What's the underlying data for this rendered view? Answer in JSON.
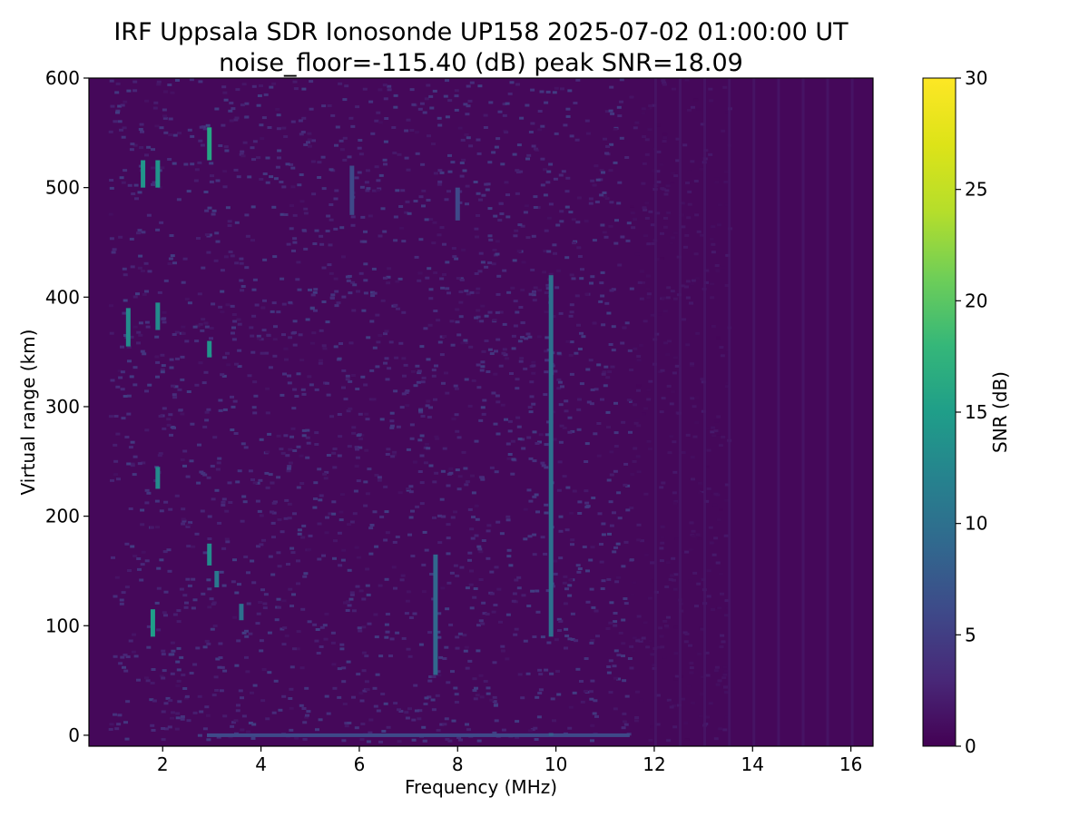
{
  "chart_data": {
    "type": "heatmap",
    "title": "IRF Uppsala SDR Ionosonde UP158 2025-07-02 01:00:00  UT",
    "subtitle": "noise_floor=-115.40 (dB) peak SNR=18.09",
    "xlabel": "Frequency (MHz)",
    "ylabel": "Virtual range (km)",
    "colorbar_label": "SNR (dB)",
    "colormap": "viridis",
    "xlim": [
      0.5,
      16.45
    ],
    "ylim": [
      -10,
      600
    ],
    "clim": [
      0,
      30
    ],
    "grid": false,
    "x_ticks": [
      2,
      4,
      6,
      8,
      10,
      12,
      14,
      16
    ],
    "y_ticks": [
      0,
      100,
      200,
      300,
      400,
      500,
      600
    ],
    "colorbar_ticks": [
      0,
      5,
      10,
      15,
      20,
      25,
      30
    ],
    "background_snr_db": 0.5,
    "strong_echoes": [
      {
        "freq": 1.3,
        "range_from": 355,
        "range_to": 390,
        "snr": 13
      },
      {
        "freq": 1.6,
        "range_from": 500,
        "range_to": 525,
        "snr": 14
      },
      {
        "freq": 1.9,
        "range_from": 500,
        "range_to": 525,
        "snr": 14
      },
      {
        "freq": 1.9,
        "range_from": 370,
        "range_to": 395,
        "snr": 13
      },
      {
        "freq": 1.8,
        "range_from": 90,
        "range_to": 115,
        "snr": 15
      },
      {
        "freq": 1.9,
        "range_from": 225,
        "range_to": 245,
        "snr": 13
      },
      {
        "freq": 2.95,
        "range_from": 525,
        "range_to": 555,
        "snr": 16
      },
      {
        "freq": 2.95,
        "range_from": 345,
        "range_to": 360,
        "snr": 14
      },
      {
        "freq": 2.95,
        "range_from": 155,
        "range_to": 175,
        "snr": 13
      },
      {
        "freq": 3.1,
        "range_from": 135,
        "range_to": 150,
        "snr": 11
      },
      {
        "freq": 3.6,
        "range_from": 105,
        "range_to": 120,
        "snr": 10
      },
      {
        "freq": 7.55,
        "range_from": 55,
        "range_to": 165,
        "snr": 9
      },
      {
        "freq": 9.9,
        "range_from": 90,
        "range_to": 420,
        "snr": 10
      },
      {
        "freq": 9.9,
        "range_from": 0,
        "range_to": 2,
        "snr": 8
      },
      {
        "freq": 5.85,
        "range_from": 475,
        "range_to": 520,
        "snr": 6
      },
      {
        "freq": 8.0,
        "range_from": 470,
        "range_to": 500,
        "snr": 6
      }
    ],
    "ground_echo": {
      "range": 0,
      "freq_from": 2.9,
      "freq_to": 11.5,
      "snr": 6
    }
  }
}
